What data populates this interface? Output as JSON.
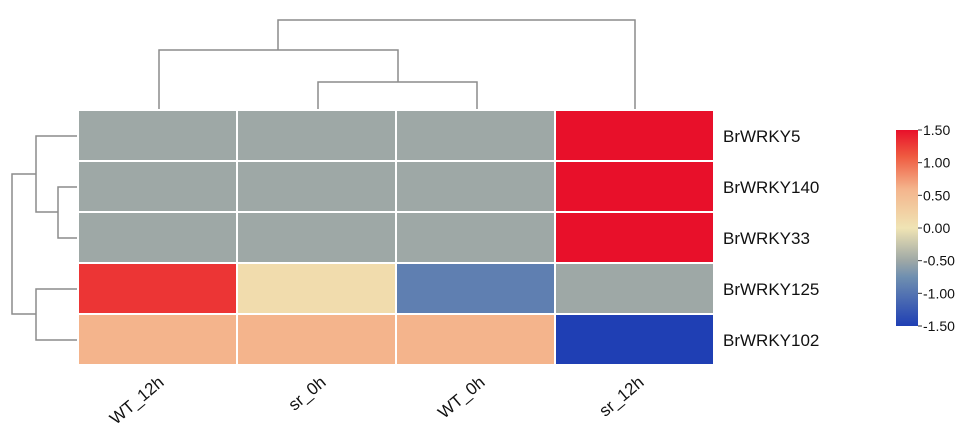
{
  "chart_data": {
    "type": "heatmap",
    "title": "",
    "xlabel": "",
    "ylabel": "",
    "columns": [
      "WT_12h",
      "sr_0h",
      "WT_0h",
      "sr_12h"
    ],
    "rows": [
      "BrWRKY5",
      "BrWRKY140",
      "BrWRKY33",
      "BrWRKY125",
      "BrWRKY102"
    ],
    "values": [
      [
        -0.5,
        -0.5,
        -0.5,
        1.5
      ],
      [
        -0.5,
        -0.5,
        -0.5,
        1.5
      ],
      [
        -0.5,
        -0.5,
        -0.5,
        1.5
      ],
      [
        1.3,
        0.1,
        -0.9,
        -0.5
      ],
      [
        0.6,
        0.6,
        0.6,
        -1.5
      ]
    ],
    "color_scale": {
      "min": -1.5,
      "max": 1.5,
      "stops": [
        {
          "value": -1.5,
          "color": "#1f3fb4"
        },
        {
          "value": -0.75,
          "color": "#6f8fb0"
        },
        {
          "value": -0.5,
          "color": "#9ea8a6"
        },
        {
          "value": 0.0,
          "color": "#f0e4b4"
        },
        {
          "value": 0.6,
          "color": "#f4b48c"
        },
        {
          "value": 1.1,
          "color": "#ef5a40"
        },
        {
          "value": 1.5,
          "color": "#e8102a"
        }
      ],
      "ticks": [
        "1.50",
        "1.00",
        "0.50",
        "0.00",
        "-0.50",
        "-1.00",
        "-1.50"
      ]
    },
    "column_dendrogram": [
      [
        "sr_0h",
        "WT_0h"
      ],
      [
        "WT_12h",
        [
          "sr_0h",
          "WT_0h"
        ]
      ],
      [
        [
          "WT_12h",
          [
            "sr_0h",
            "WT_0h"
          ]
        ],
        "sr_12h"
      ]
    ],
    "row_dendrogram": [
      [
        "BrWRKY140",
        "BrWRKY33"
      ],
      [
        "BrWRKY5",
        [
          "BrWRKY140",
          "BrWRKY33"
        ]
      ],
      [
        "BrWRKY125",
        "BrWRKY102"
      ],
      [
        [
          "BrWRKY5",
          [
            "BrWRKY140",
            "BrWRKY33"
          ]
        ],
        [
          "BrWRKY125",
          "BrWRKY102"
        ]
      ]
    ],
    "legend_position": "right"
  }
}
